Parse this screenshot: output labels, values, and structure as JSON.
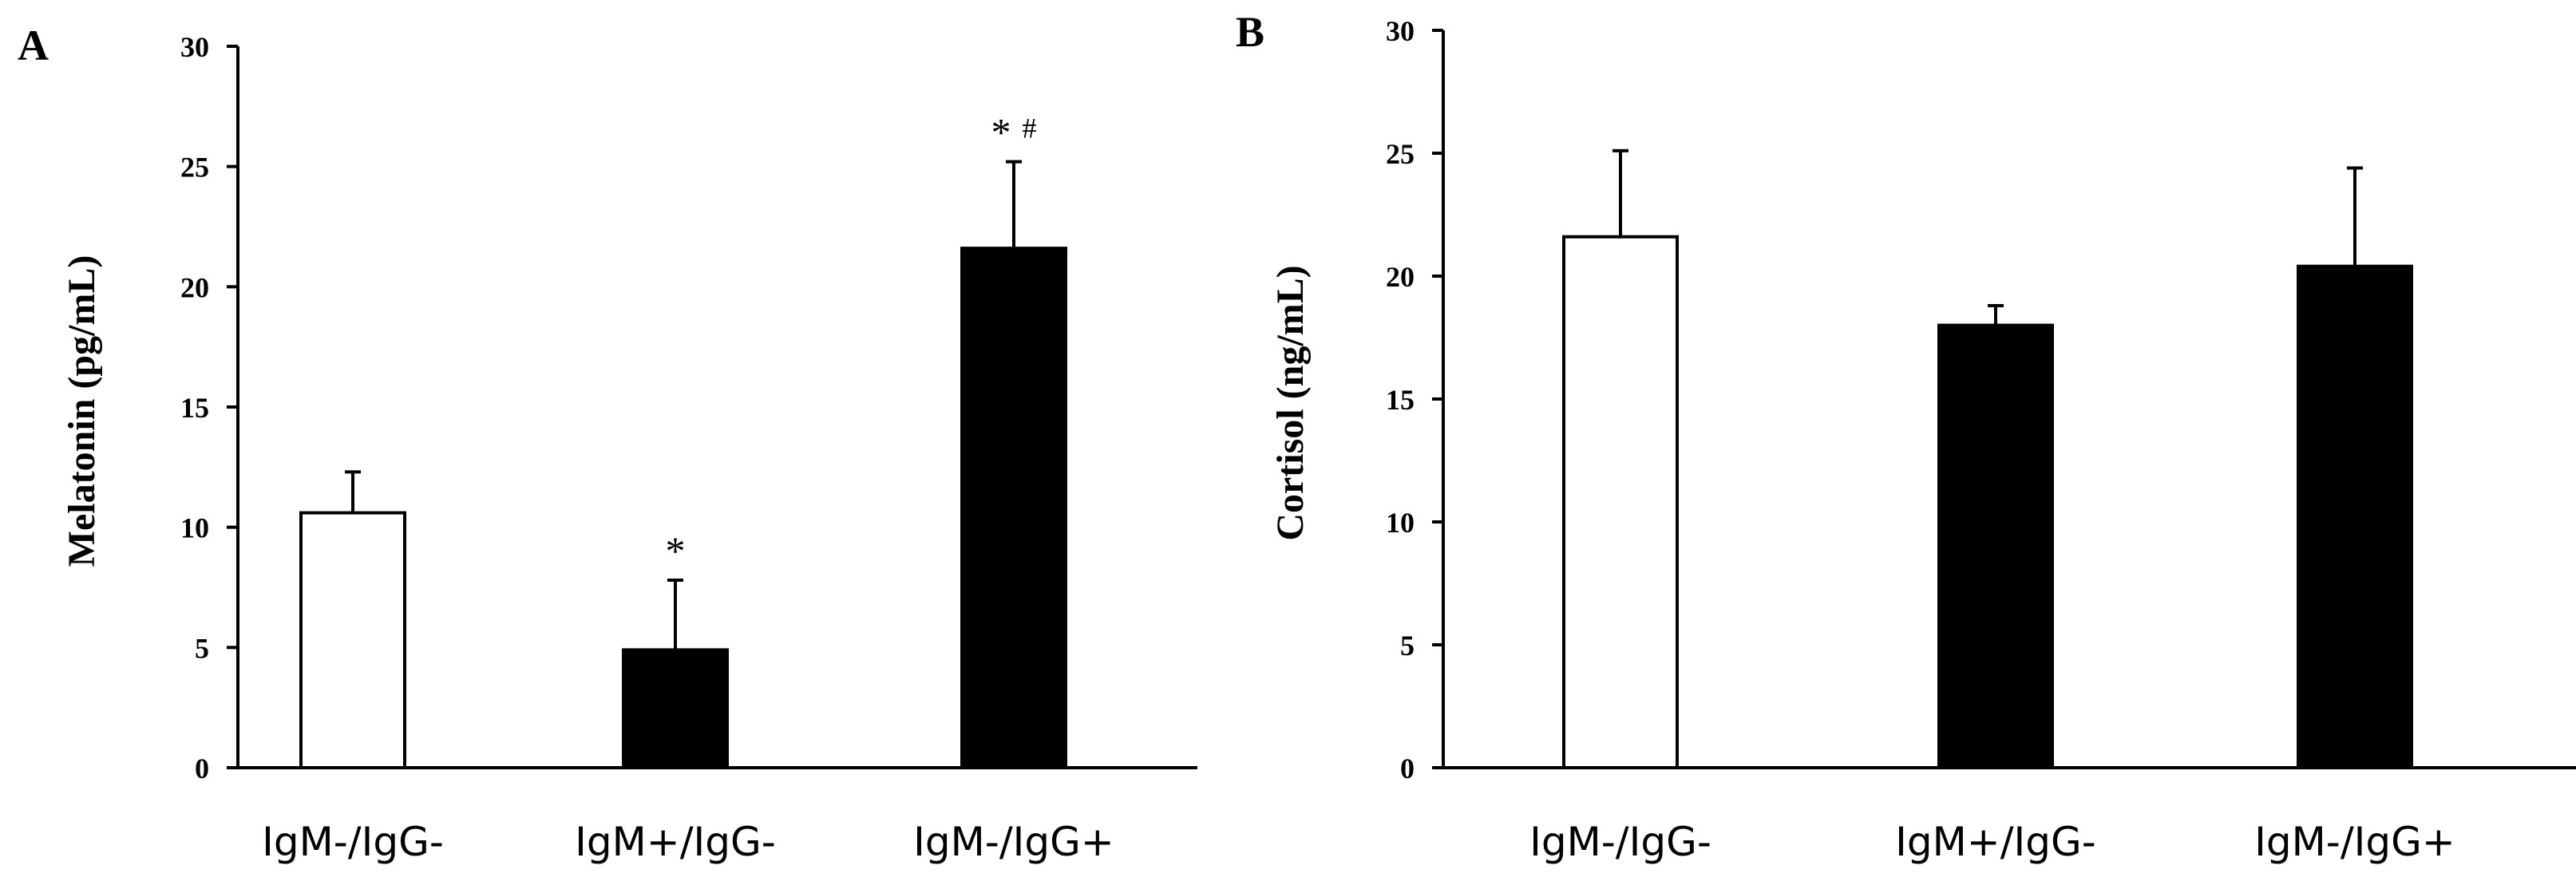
{
  "chart_data": [
    {
      "type": "bar",
      "panel": "A",
      "ylabel": "Melatonin (pg/mL)",
      "xlabel": "",
      "ylim": [
        0,
        30
      ],
      "yticks": [
        "0",
        "5",
        "10",
        "15",
        "20",
        "25",
        "30"
      ],
      "categories": [
        "IgM-/IgG-",
        "IgM+/IgG-",
        "IgM-/IgG+"
      ],
      "values": [
        10.6,
        4.9,
        21.6
      ],
      "errors": [
        1.7,
        2.9,
        3.6
      ],
      "fills": [
        "#ffffff",
        "#000000",
        "#000000"
      ],
      "annotations": [
        "",
        "*",
        "* #"
      ]
    },
    {
      "type": "bar",
      "panel": "B",
      "ylabel": "Cortisol (ng/mL)",
      "xlabel": "",
      "ylim": [
        0,
        30
      ],
      "yticks": [
        "0",
        "5",
        "10",
        "15",
        "20",
        "25",
        "30"
      ],
      "categories": [
        "IgM-/IgG-",
        "IgM+/IgG-",
        "IgM-/IgG+"
      ],
      "values": [
        21.6,
        18.0,
        20.4
      ],
      "errors": [
        3.5,
        0.8,
        4.0
      ],
      "fills": [
        "#ffffff",
        "#000000",
        "#000000"
      ],
      "annotations": [
        "",
        "",
        ""
      ]
    }
  ]
}
